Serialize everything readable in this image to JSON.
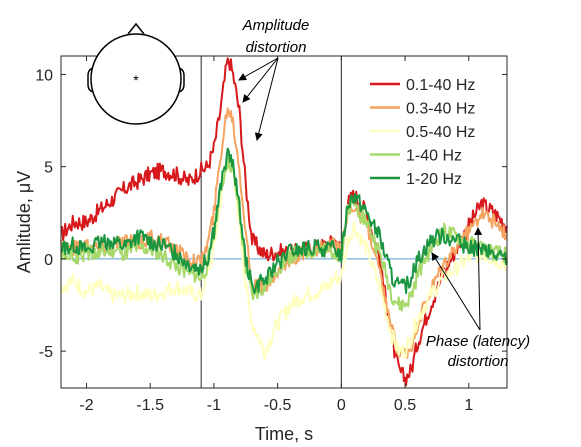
{
  "chart_data": {
    "type": "line",
    "xlabel": "Time, s",
    "ylabel": "Amlitude, μV",
    "xlim": [
      -2.2,
      1.3
    ],
    "ylim": [
      -7,
      11
    ],
    "x_ticks": [
      -2,
      -1.5,
      -1,
      -0.5,
      0,
      0.5,
      1
    ],
    "x_tick_labels": [
      "-2",
      "-1.5",
      "-1",
      "-0.5",
      "0",
      "0.5",
      "1"
    ],
    "y_ticks": [
      -5,
      0,
      5,
      10
    ],
    "y_tick_labels": [
      "-5",
      "0",
      "5",
      "10"
    ],
    "vertical_markers": [
      -1.1,
      0
    ],
    "baseline": 0,
    "legend_position": "top-right",
    "series": [
      {
        "name": "0.1-40 Hz",
        "color": "#d7191c",
        "x": [
          -2.2,
          -2.1,
          -2.0,
          -1.9,
          -1.8,
          -1.7,
          -1.6,
          -1.5,
          -1.4,
          -1.3,
          -1.2,
          -1.1,
          -1.05,
          -1.0,
          -0.95,
          -0.9,
          -0.88,
          -0.85,
          -0.8,
          -0.75,
          -0.7,
          -0.6,
          -0.5,
          -0.4,
          -0.3,
          -0.2,
          -0.1,
          -0.05,
          0.0,
          0.05,
          0.1,
          0.2,
          0.3,
          0.4,
          0.45,
          0.5,
          0.55,
          0.6,
          0.7,
          0.8,
          0.9,
          1.0,
          1.1,
          1.2,
          1.3
        ],
        "y": [
          1.3,
          2.0,
          2.0,
          2.6,
          3.2,
          3.8,
          4.2,
          4.6,
          4.8,
          4.6,
          4.2,
          4.8,
          5.0,
          6.0,
          8.0,
          10.5,
          10.8,
          10.0,
          8.0,
          4.0,
          1.0,
          0.2,
          0.4,
          0.3,
          0.5,
          0.6,
          0.8,
          1.0,
          0.5,
          3.0,
          3.5,
          2.5,
          0.0,
          -4.5,
          -6.0,
          -6.5,
          -6.0,
          -4.5,
          -2.5,
          -0.8,
          0.5,
          1.8,
          3.0,
          2.5,
          1.8
        ]
      },
      {
        "name": "0.3-40 Hz",
        "color": "#f4a460",
        "x": [
          -2.2,
          -2.1,
          -2.0,
          -1.9,
          -1.8,
          -1.7,
          -1.6,
          -1.5,
          -1.4,
          -1.3,
          -1.2,
          -1.1,
          -1.05,
          -1.0,
          -0.95,
          -0.9,
          -0.88,
          -0.85,
          -0.8,
          -0.75,
          -0.7,
          -0.6,
          -0.5,
          -0.4,
          -0.3,
          -0.2,
          -0.1,
          -0.05,
          0.0,
          0.05,
          0.1,
          0.2,
          0.3,
          0.4,
          0.45,
          0.5,
          0.55,
          0.6,
          0.7,
          0.8,
          0.9,
          1.0,
          1.1,
          1.2,
          1.3
        ],
        "y": [
          0.8,
          0.6,
          0.8,
          0.6,
          0.8,
          1.0,
          0.8,
          1.2,
          0.9,
          0.5,
          0.0,
          -0.2,
          0.8,
          2.5,
          5.5,
          8.0,
          8.2,
          7.5,
          5.0,
          1.5,
          -1.5,
          -1.5,
          -0.8,
          0.0,
          0.3,
          0.5,
          0.6,
          0.8,
          0.3,
          2.5,
          3.0,
          1.8,
          -0.8,
          -4.0,
          -5.0,
          -5.2,
          -4.8,
          -3.5,
          -1.8,
          -0.4,
          0.6,
          1.5,
          2.6,
          2.0,
          1.2
        ]
      },
      {
        "name": "0.5-40 Hz",
        "color": "#ffffbf",
        "x": [
          -2.2,
          -2.1,
          -2.0,
          -1.9,
          -1.8,
          -1.7,
          -1.6,
          -1.5,
          -1.4,
          -1.3,
          -1.2,
          -1.1,
          -1.05,
          -1.0,
          -0.95,
          -0.9,
          -0.88,
          -0.85,
          -0.8,
          -0.75,
          -0.7,
          -0.6,
          -0.5,
          -0.4,
          -0.3,
          -0.2,
          -0.1,
          -0.05,
          0.0,
          0.05,
          0.1,
          0.2,
          0.3,
          0.4,
          0.45,
          0.5,
          0.55,
          0.6,
          0.7,
          0.8,
          0.9,
          1.0,
          1.1,
          1.2,
          1.3
        ],
        "y": [
          -1.5,
          -1.2,
          -1.8,
          -1.5,
          -2.0,
          -2.0,
          -1.8,
          -2.0,
          -1.8,
          -1.5,
          -1.8,
          -2.0,
          -0.8,
          0.5,
          3.0,
          5.0,
          5.2,
          4.5,
          2.0,
          -1.5,
          -3.5,
          -5.0,
          -3.5,
          -2.5,
          -2.0,
          -1.8,
          -1.5,
          -1.0,
          -1.0,
          1.0,
          1.8,
          0.5,
          -1.5,
          -4.2,
          -5.0,
          -5.0,
          -4.2,
          -3.2,
          -2.0,
          -1.0,
          -0.5,
          0.0,
          0.3,
          0.0,
          -0.3
        ]
      },
      {
        "name": "1-40 Hz",
        "color": "#a6d96a",
        "x": [
          -2.2,
          -2.1,
          -2.0,
          -1.9,
          -1.8,
          -1.7,
          -1.6,
          -1.5,
          -1.4,
          -1.3,
          -1.2,
          -1.1,
          -1.05,
          -1.0,
          -0.95,
          -0.9,
          -0.88,
          -0.85,
          -0.8,
          -0.75,
          -0.7,
          -0.6,
          -0.5,
          -0.4,
          -0.3,
          -0.2,
          -0.1,
          -0.05,
          0.0,
          0.05,
          0.1,
          0.2,
          0.3,
          0.4,
          0.45,
          0.5,
          0.55,
          0.6,
          0.7,
          0.8,
          0.9,
          1.0,
          1.1,
          1.2,
          1.3
        ],
        "y": [
          0.3,
          0.0,
          0.4,
          0.2,
          0.5,
          0.3,
          0.6,
          0.5,
          0.2,
          -0.3,
          -0.8,
          -1.0,
          -0.3,
          1.5,
          3.5,
          5.2,
          5.3,
          4.8,
          2.5,
          -0.5,
          -2.0,
          -1.5,
          -0.5,
          0.2,
          0.3,
          0.5,
          0.4,
          0.5,
          0.0,
          2.5,
          3.0,
          2.0,
          0.3,
          -2.0,
          -2.5,
          -2.5,
          -2.0,
          -0.8,
          0.5,
          1.5,
          1.2,
          0.8,
          0.6,
          0.3,
          0.2
        ]
      },
      {
        "name": "1-20 Hz",
        "color": "#1a9641",
        "x": [
          -2.2,
          -2.1,
          -2.0,
          -1.9,
          -1.8,
          -1.7,
          -1.6,
          -1.5,
          -1.4,
          -1.3,
          -1.2,
          -1.1,
          -1.05,
          -1.0,
          -0.95,
          -0.9,
          -0.88,
          -0.85,
          -0.8,
          -0.75,
          -0.7,
          -0.6,
          -0.5,
          -0.4,
          -0.3,
          -0.2,
          -0.1,
          -0.05,
          0.0,
          0.05,
          0.1,
          0.2,
          0.3,
          0.4,
          0.45,
          0.5,
          0.55,
          0.6,
          0.7,
          0.8,
          0.9,
          1.0,
          1.1,
          1.2,
          1.3
        ],
        "y": [
          0.6,
          0.8,
          0.5,
          0.8,
          1.0,
          0.7,
          1.2,
          1.0,
          0.7,
          0.3,
          -0.2,
          -0.5,
          0.0,
          1.5,
          3.8,
          5.5,
          5.6,
          5.0,
          2.8,
          0.0,
          -1.5,
          -1.2,
          -0.2,
          0.4,
          0.5,
          0.6,
          0.5,
          0.6,
          0.2,
          3.0,
          3.5,
          2.5,
          1.2,
          -1.0,
          -1.5,
          -1.5,
          -1.0,
          0.0,
          1.0,
          1.3,
          1.0,
          0.6,
          0.5,
          0.2,
          0.0
        ]
      }
    ],
    "annotations": [
      {
        "text_lines": [
          "Amplitude",
          "distortion"
        ]
      },
      {
        "text_lines": [
          "Phase (latency)",
          "distortion"
        ]
      }
    ],
    "inset": {
      "marker": "*"
    }
  }
}
